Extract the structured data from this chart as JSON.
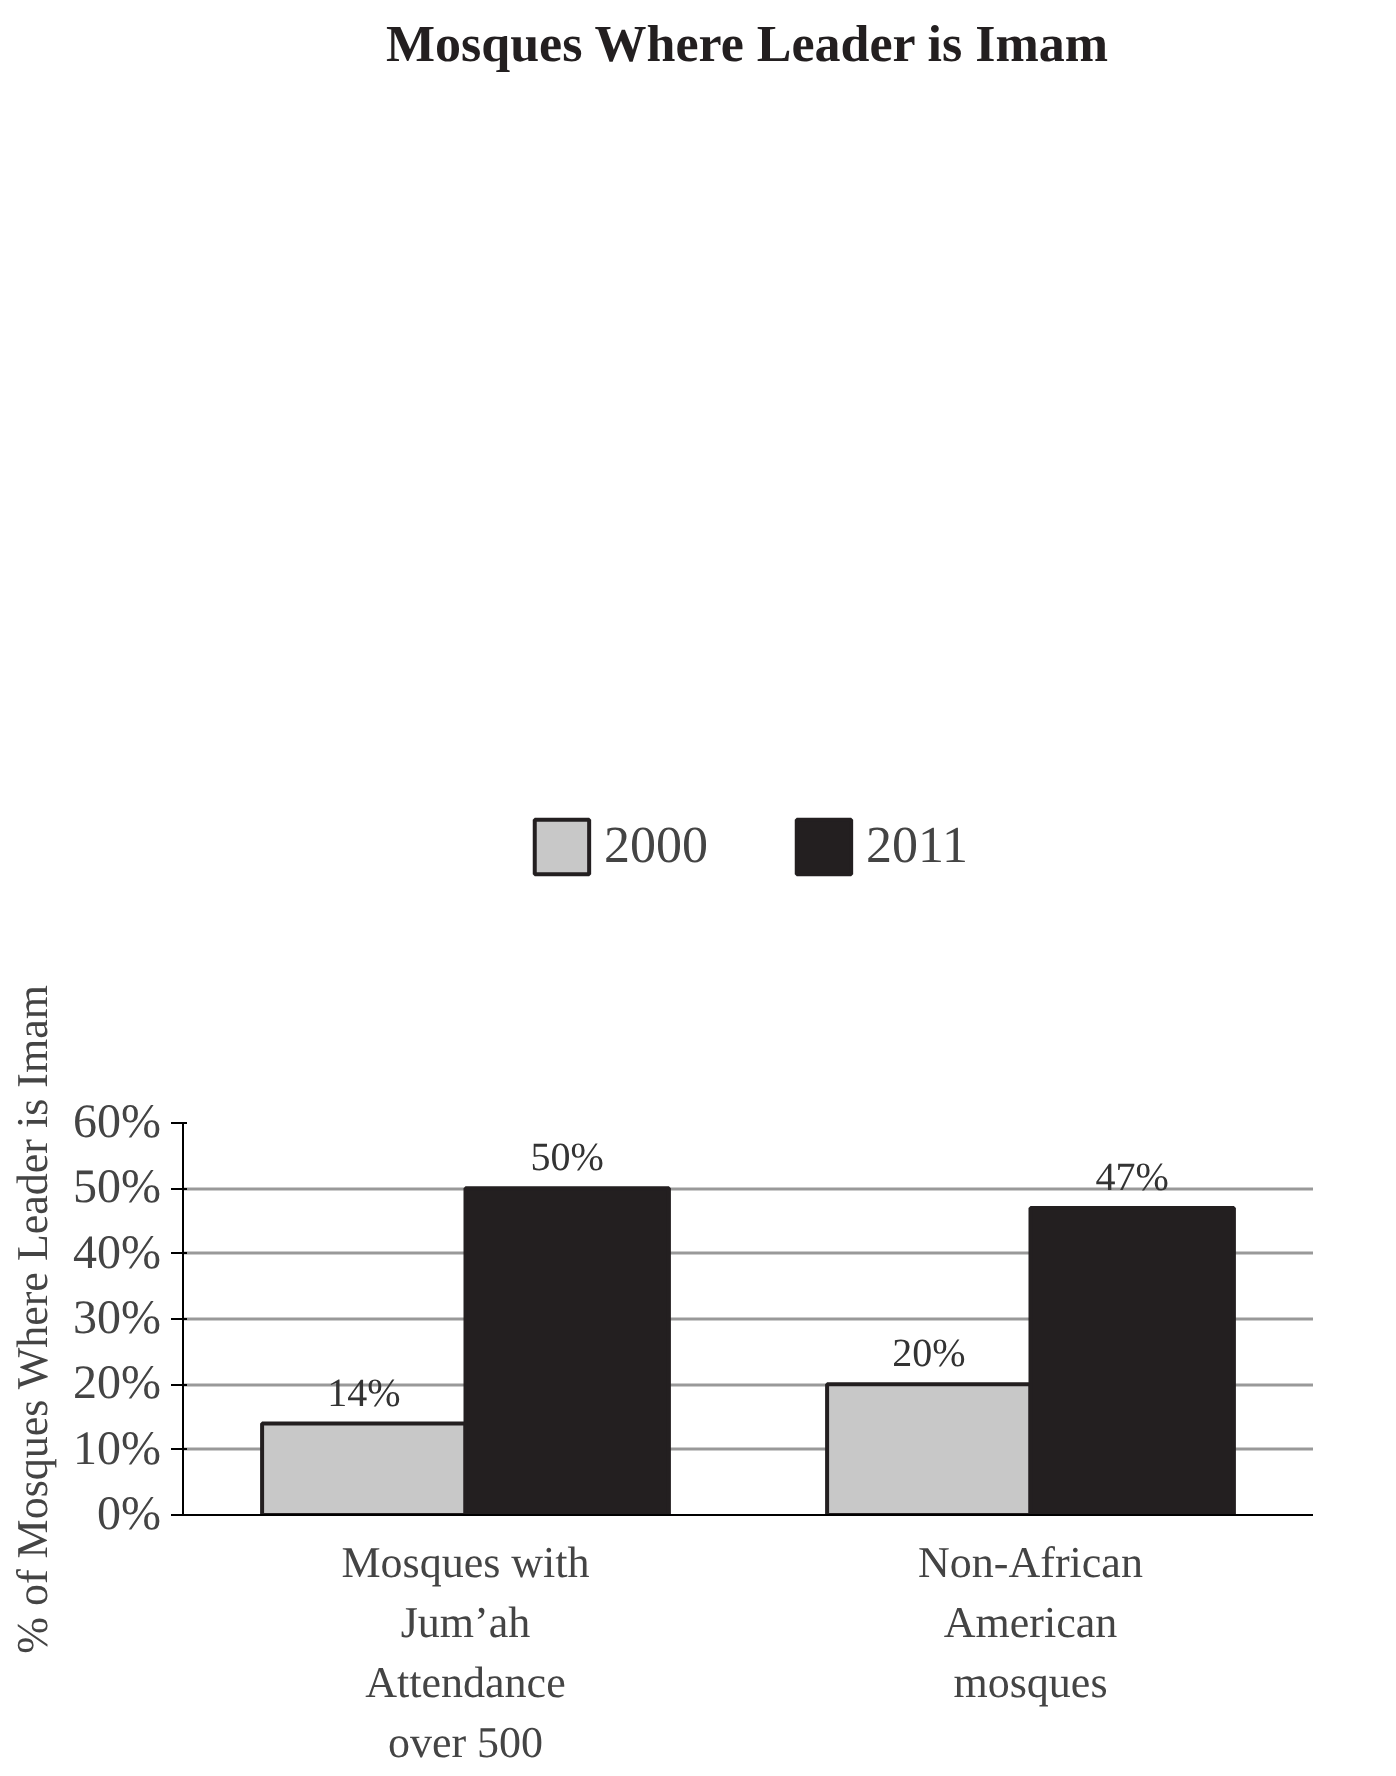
{
  "chart_data": {
    "type": "bar",
    "title": "Mosques Where Leader is Imam",
    "ylabel": "% of Mosques Where Leader is Imam",
    "categories": [
      "Mosques with Jum’ah Attendance over 500",
      "Non-African American mosques"
    ],
    "series": [
      {
        "name": "2000",
        "color": "#c8c8c8",
        "values": [
          14,
          20
        ],
        "value_labels": [
          "14%",
          "20%"
        ]
      },
      {
        "name": "2011",
        "color": "#231f20",
        "values": [
          50,
          47
        ],
        "value_labels": [
          "50%",
          "47%"
        ]
      }
    ],
    "ylim": [
      0,
      60
    ],
    "yticks": [
      {
        "value": 0,
        "label": "0%"
      },
      {
        "value": 10,
        "label": "10%"
      },
      {
        "value": 20,
        "label": "20%"
      },
      {
        "value": 30,
        "label": "30%"
      },
      {
        "value": 40,
        "label": "40%"
      },
      {
        "value": 50,
        "label": "50%"
      },
      {
        "value": 60,
        "label": "60%"
      }
    ],
    "grid": "y",
    "legend": "top"
  }
}
